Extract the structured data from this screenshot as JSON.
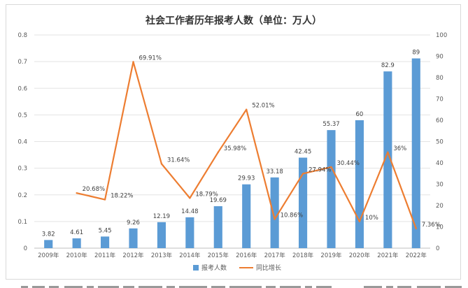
{
  "chart_data": {
    "type": "bar+line",
    "title": "社会工作者历年报考人数（单位：万人）",
    "categories": [
      "2009年",
      "2010年",
      "2011年",
      "2012年",
      "2013年",
      "2014年",
      "2015年",
      "2016年",
      "2017年",
      "2018年",
      "2019年",
      "2020年",
      "2021年",
      "2022年"
    ],
    "series": [
      {
        "name": "报考人数",
        "type": "bar",
        "axis": "right",
        "color": "#5b9bd5",
        "values": [
          3.82,
          4.61,
          5.45,
          9.26,
          12.19,
          14.48,
          19.69,
          29.93,
          33.18,
          42.45,
          55.37,
          60,
          82.9,
          89
        ],
        "labels": [
          "3.82",
          "4.61",
          "5.45",
          "9.26",
          "12.19",
          "14.48",
          "19.69",
          "29.93",
          "33.18",
          "42.45",
          "55.37",
          "60",
          "82.9",
          "89"
        ]
      },
      {
        "name": "同比增长",
        "type": "line",
        "axis": "left",
        "color": "#ed7d31",
        "values": [
          null,
          0.2068,
          0.1822,
          0.6991,
          0.3164,
          0.1879,
          0.3598,
          0.5201,
          0.1086,
          0.2794,
          0.3044,
          0.1,
          0.36,
          0.0736
        ],
        "labels": [
          null,
          "20.68%",
          "18.22%",
          "69.91%",
          "31.64%",
          "18.79%",
          "35.98%",
          "52.01%",
          "10.86%",
          "27.94%",
          "30.44%",
          "10%",
          "36%",
          "7.36%"
        ]
      }
    ],
    "left_axis": {
      "min": 0,
      "max": 0.8,
      "ticks": [
        "0",
        "0.1",
        "0.2",
        "0.3",
        "0.4",
        "0.5",
        "0.6",
        "0.7",
        "0.8"
      ]
    },
    "right_axis": {
      "min": 0,
      "max": 100,
      "ticks": [
        "0",
        "10",
        "20",
        "30",
        "40",
        "50",
        "60",
        "70",
        "80",
        "90",
        "100"
      ]
    },
    "grid": true,
    "legend": "bottom-center"
  }
}
